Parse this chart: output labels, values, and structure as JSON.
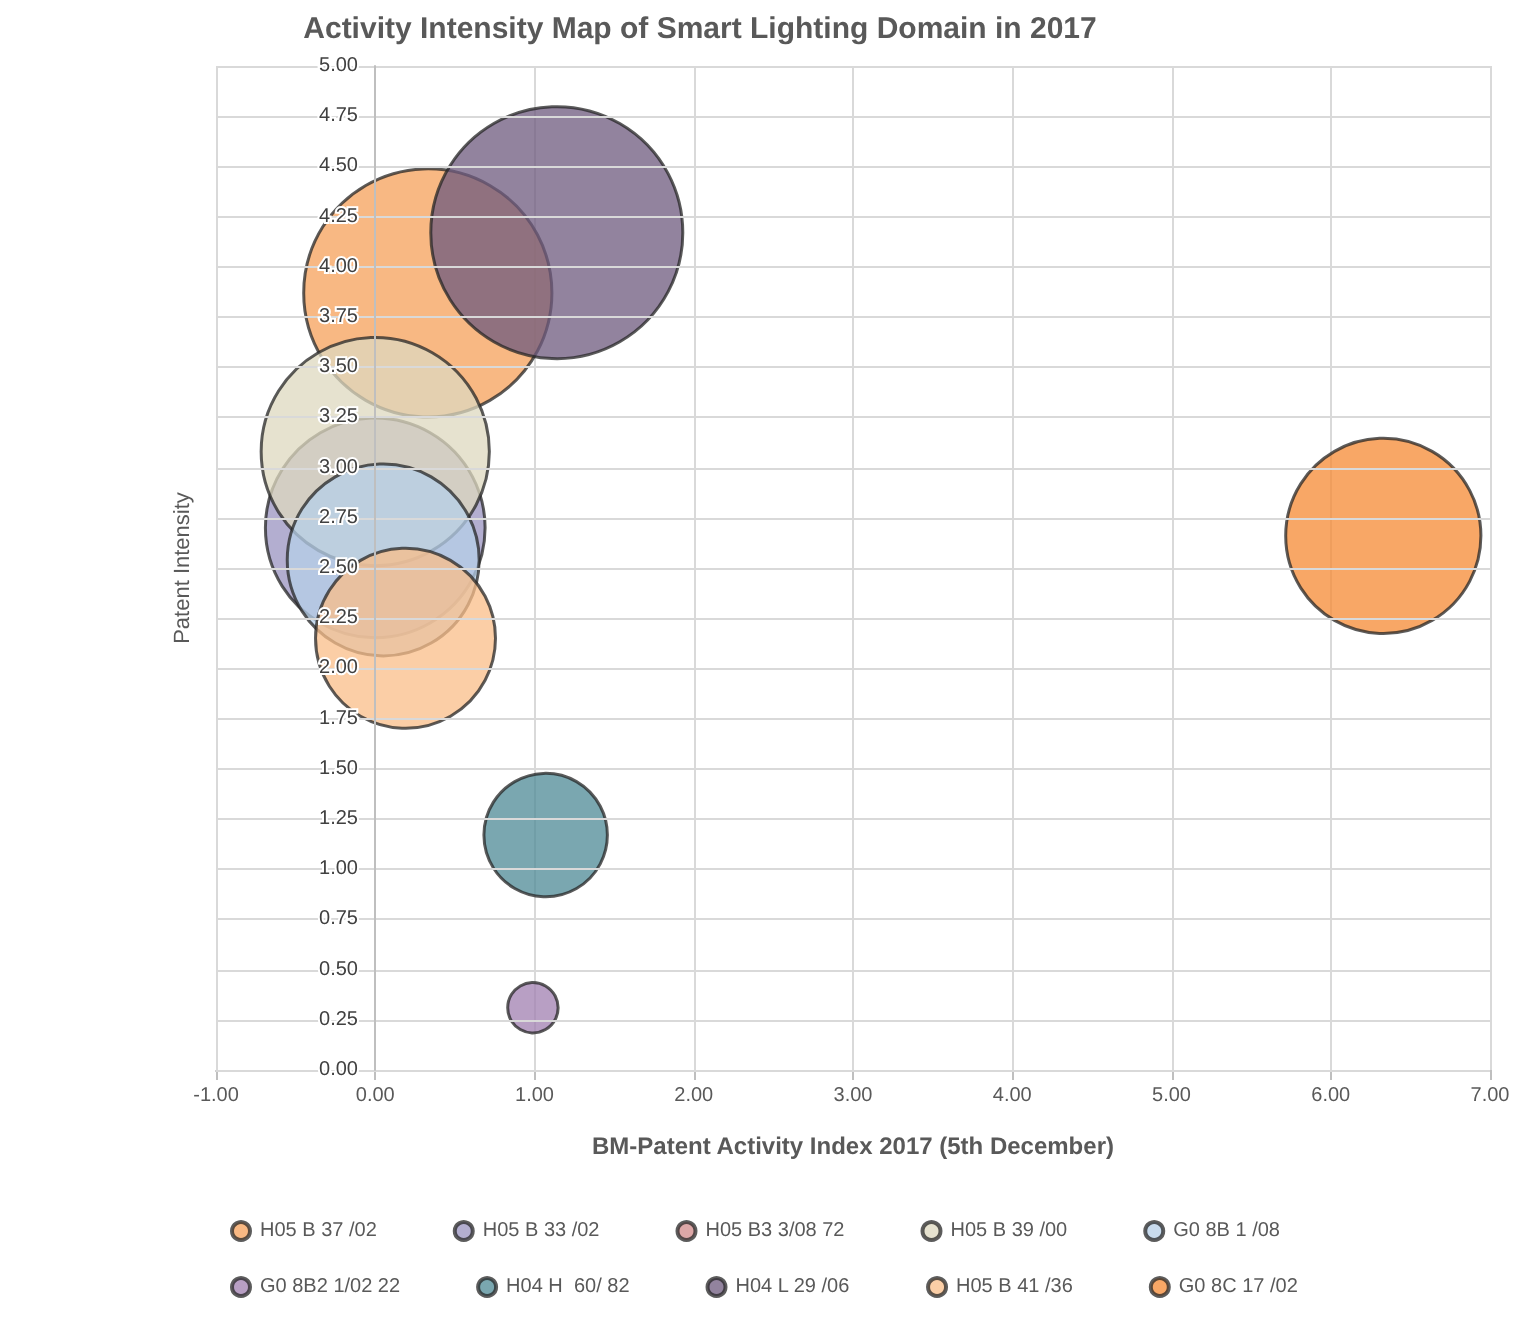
{
  "chart_data": {
    "type": "bubble",
    "title": "Activity Intensity Map of Smart Lighting Domain in 2017",
    "xlabel": "BM-Patent Activity Index 2017 (5th December)",
    "ylabel": "Patent Intensity",
    "series": [
      {
        "name": "H05 B 37 /02",
        "color": "#f5a05a",
        "x": [
          0.33
        ],
        "values": [
          3.87
        ],
        "sizes": [
          0.97
        ]
      },
      {
        "name": "H05 B 33 /02",
        "color": "#9a93c0",
        "x": [
          0.0
        ],
        "values": [
          2.7
        ],
        "sizes": [
          0.76
        ]
      },
      {
        "name": "H05 B3 3/08 72",
        "color": "#d28a8a",
        "x": [
          null
        ],
        "values": [
          null
        ],
        "sizes": [
          null
        ]
      },
      {
        "name": "H05 B 39 /00",
        "color": "#ddd8bf",
        "x": [
          0.0
        ],
        "values": [
          3.08
        ],
        "sizes": [
          0.82
        ]
      },
      {
        "name": "G0 8B 1 /08",
        "color": "#b5cfe8",
        "x": [
          0.05
        ],
        "values": [
          2.54
        ],
        "sizes": [
          0.58
        ]
      },
      {
        "name": "G0 8B2 1/02 22",
        "color": "#a07fb0",
        "x": [
          0.99
        ],
        "values": [
          0.31
        ],
        "sizes": [
          0.04
        ]
      },
      {
        "name": "H04 H  60/ 82",
        "color": "#4e8a96",
        "x": [
          1.07
        ],
        "values": [
          1.17
        ],
        "sizes": [
          0.24
        ]
      },
      {
        "name": "H04 L 29 /06",
        "color": "#6e5a7e",
        "x": [
          1.14
        ],
        "values": [
          4.17
        ],
        "sizes": [
          1.0
        ]
      },
      {
        "name": "H05 B 41 /36",
        "color": "#f9bd88",
        "x": [
          0.19
        ],
        "values": [
          2.15
        ],
        "sizes": [
          0.51
        ]
      },
      {
        "name": "G0 8C 17 /02",
        "color": "#f58a33",
        "x": [
          6.33
        ],
        "values": [
          2.66
        ],
        "sizes": [
          0.6
        ]
      }
    ],
    "xlim": [
      -1,
      7
    ],
    "xticks": [
      {
        "value": -1,
        "label": "-1.00"
      },
      {
        "value": 0,
        "label": "0.00"
      },
      {
        "value": 1,
        "label": "1.00"
      },
      {
        "value": 2,
        "label": "2.00"
      },
      {
        "value": 3,
        "label": "3.00"
      },
      {
        "value": 4,
        "label": "4.00"
      },
      {
        "value": 5,
        "label": "5.00"
      },
      {
        "value": 6,
        "label": "6.00"
      },
      {
        "value": 7,
        "label": "7.00"
      }
    ],
    "ylim": [
      0,
      5
    ],
    "yticks": [
      {
        "value": 0,
        "label": "0.00"
      },
      {
        "value": 0.25,
        "label": "0.25"
      },
      {
        "value": 0.5,
        "label": "0.50"
      },
      {
        "value": 0.75,
        "label": "0.75"
      },
      {
        "value": 1,
        "label": "1.00"
      },
      {
        "value": 1.25,
        "label": "1.25"
      },
      {
        "value": 1.5,
        "label": "1.50"
      },
      {
        "value": 1.75,
        "label": "1.75"
      },
      {
        "value": 2,
        "label": "2.00"
      },
      {
        "value": 2.25,
        "label": "2.25"
      },
      {
        "value": 2.5,
        "label": "2.50"
      },
      {
        "value": 2.75,
        "label": "2.75"
      },
      {
        "value": 3,
        "label": "3.00"
      },
      {
        "value": 3.25,
        "label": "3.25"
      },
      {
        "value": 3.5,
        "label": "3.50"
      },
      {
        "value": 3.75,
        "label": "3.75"
      },
      {
        "value": 4,
        "label": "4.00"
      },
      {
        "value": 4.25,
        "label": "4.25"
      },
      {
        "value": 4.5,
        "label": "4.50"
      },
      {
        "value": 4.75,
        "label": "4.75"
      },
      {
        "value": 5,
        "label": "5.00"
      }
    ],
    "grid": true,
    "legend": "bottom"
  }
}
